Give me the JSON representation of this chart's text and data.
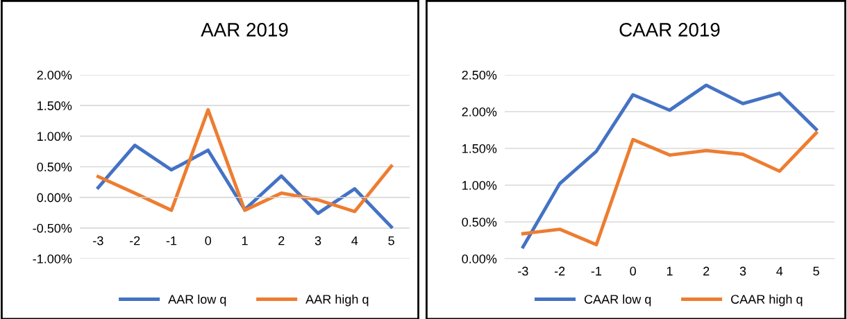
{
  "chart_data": [
    {
      "type": "line",
      "title": "AAR 2019",
      "categories": [
        "-3",
        "-2",
        "-1",
        "0",
        "1",
        "2",
        "3",
        "4",
        "5"
      ],
      "series": [
        {
          "name": "AAR low q",
          "color": "#4472c4",
          "values": [
            0.16,
            0.85,
            0.45,
            0.77,
            -0.2,
            0.35,
            -0.26,
            0.14,
            -0.48
          ]
        },
        {
          "name": "AAR high q",
          "color": "#ed7d31",
          "values": [
            0.34,
            0.07,
            -0.21,
            1.43,
            -0.21,
            0.07,
            -0.04,
            -0.23,
            0.51
          ]
        }
      ],
      "ylim": [
        -1.0,
        2.0
      ],
      "yticks": [
        {
          "value": -1.0,
          "label": "-1.00%"
        },
        {
          "value": -0.5,
          "label": "-0.50%"
        },
        {
          "value": 0,
          "label": "0.00%"
        },
        {
          "value": 0.5,
          "label": "0.50%"
        },
        {
          "value": 1.0,
          "label": "1.00%"
        },
        {
          "value": 1.5,
          "label": "1.50%"
        },
        {
          "value": 2.0,
          "label": "2.00%"
        }
      ],
      "grid": "y",
      "legend": "bottom",
      "marker": "none",
      "line_style": "solid"
    },
    {
      "type": "line",
      "title": "CAAR 2019",
      "categories": [
        "-3",
        "-2",
        "-1",
        "0",
        "1",
        "2",
        "3",
        "4",
        "5"
      ],
      "series": [
        {
          "name": "CAAR low q",
          "color": "#4472c4",
          "values": [
            0.16,
            1.02,
            1.46,
            2.23,
            2.02,
            2.36,
            2.11,
            2.25,
            1.76
          ]
        },
        {
          "name": "CAAR high q",
          "color": "#ed7d31",
          "values": [
            0.34,
            0.4,
            0.19,
            1.62,
            1.41,
            1.47,
            1.42,
            1.19,
            1.71
          ]
        }
      ],
      "ylim": [
        0,
        2.5
      ],
      "yticks": [
        {
          "value": 0,
          "label": "0.00%"
        },
        {
          "value": 0.5,
          "label": "0.50%"
        },
        {
          "value": 1.0,
          "label": "1.00%"
        },
        {
          "value": 1.5,
          "label": "1.50%"
        },
        {
          "value": 2.0,
          "label": "2.00%"
        },
        {
          "value": 2.5,
          "label": "2.50%"
        }
      ],
      "grid": "y",
      "legend": "bottom",
      "marker": "none",
      "line_style": "solid"
    }
  ]
}
